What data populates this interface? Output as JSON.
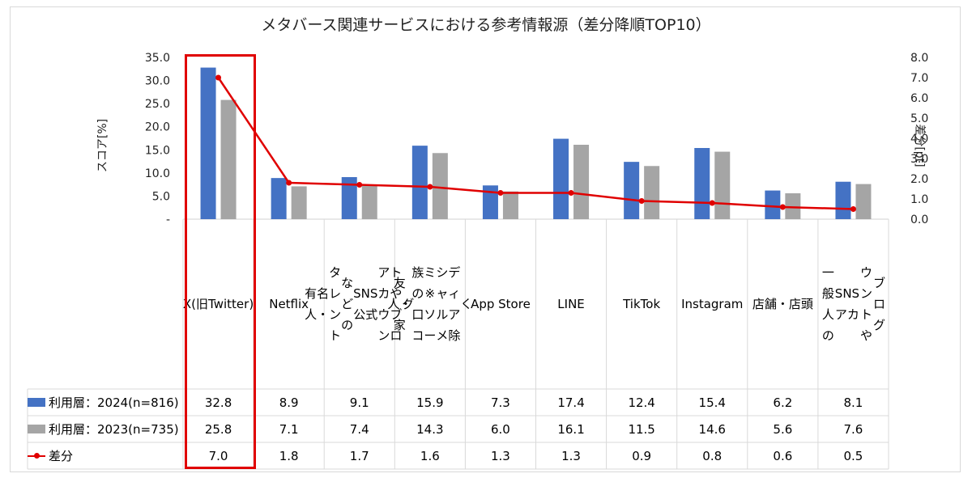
{
  "chart_data": {
    "type": "bar",
    "title": "メタバース関連サービスにおける参考情報源（差分降順TOP10）",
    "ylabel": "スコア[%]",
    "y2label": "差分[pt]",
    "ylim": [
      0,
      35
    ],
    "y2lim": [
      0,
      8
    ],
    "yticks": [
      "35.0",
      "30.0",
      "25.0",
      "20.0",
      "15.0",
      "10.0",
      "5.0",
      "-"
    ],
    "y2ticks": [
      "8.0",
      "7.0",
      "6.0",
      "5.0",
      "4.0",
      "3.0",
      "2.0",
      "1.0",
      "0.0"
    ],
    "categories": [
      "X(旧Twitter)",
      "Netflix",
      "有名人・タレントなどのSNS公式アカウントやブログ",
      "友人・家族の口コミ ※ソーシャルメディア除く",
      "App Store",
      "LINE",
      "TikTok",
      "Instagram",
      "店舗・店頭",
      "一般人のSNSアカウントやブログ"
    ],
    "series": [
      {
        "name": "利用層：2024(n=816)",
        "type": "bar",
        "color": "#4472c4",
        "values": [
          32.8,
          8.9,
          9.1,
          15.9,
          7.3,
          17.4,
          12.4,
          15.4,
          6.2,
          8.1
        ],
        "labels": [
          "32.8",
          "8.9",
          "9.1",
          "15.9",
          "7.3",
          "17.4",
          "12.4",
          "15.4",
          "6.2",
          "8.1"
        ]
      },
      {
        "name": "利用層：2023(n=735)",
        "type": "bar",
        "color": "#a5a5a5",
        "values": [
          25.8,
          7.1,
          7.4,
          14.3,
          6.0,
          16.1,
          11.5,
          14.6,
          5.6,
          7.6
        ],
        "labels": [
          "25.8",
          "7.1",
          "7.4",
          "14.3",
          "6.0",
          "16.1",
          "11.5",
          "14.6",
          "5.6",
          "7.6"
        ]
      },
      {
        "name": "差分",
        "type": "line",
        "axis": "right",
        "color": "#e00000",
        "values": [
          7.0,
          1.8,
          1.7,
          1.6,
          1.3,
          1.3,
          0.9,
          0.8,
          0.6,
          0.5
        ],
        "labels": [
          "7.0",
          "1.8",
          "1.7",
          "1.6",
          "1.3",
          "1.3",
          "0.9",
          "0.8",
          "0.6",
          "0.5"
        ]
      }
    ],
    "category_labels_display": [
      [
        "X(旧",
        "Twitter)"
      ],
      [
        "Netflix"
      ],
      [
        "有名人・",
        "タレント",
        "などの",
        "SNS公式",
        "アカウン",
        "トやブロ",
        "グ"
      ],
      [
        "友人・家",
        "族の口コ",
        "ミ ※ソー",
        "シャルメ",
        "ディア除",
        "く"
      ],
      [
        "App Store"
      ],
      [
        "LINE"
      ],
      [
        "TikTok"
      ],
      [
        "Instagram"
      ],
      [
        "店舗・店",
        "頭"
      ],
      [
        "一般人の",
        "SNSアカ",
        "ウントや",
        "ブログ"
      ]
    ],
    "highlighted_category": "X(旧Twitter)"
  }
}
